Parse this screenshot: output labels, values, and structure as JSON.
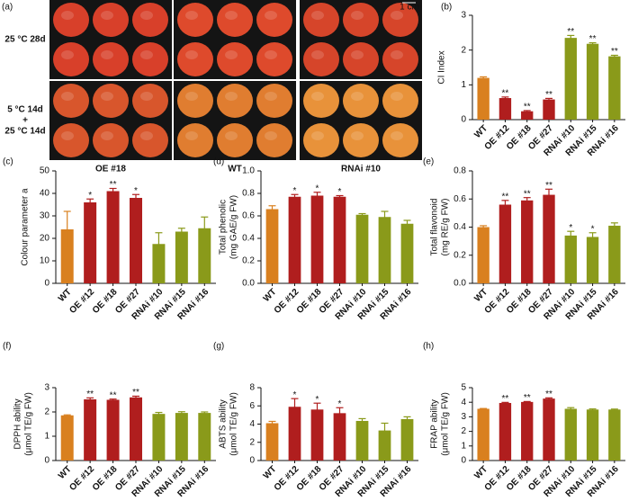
{
  "photo_panel": {
    "panel": "(a)",
    "rows": [
      {
        "label": [
          "25 °C 28d"
        ]
      },
      {
        "label": [
          "5 °C 14d",
          "+",
          "25 °C 14d"
        ]
      }
    ],
    "columns": [
      "OE #18",
      "WT",
      "RNAi #10"
    ],
    "scale_bar": "1 cm"
  },
  "chart_data": [
    {
      "type": "bar",
      "panel": "(b)",
      "ylabel": [
        "CI Index"
      ],
      "categories": [
        "WT",
        "OE #12",
        "OE #18",
        "OE #27",
        "RNAi #10",
        "RNAi #15",
        "RNAi #16"
      ],
      "values": [
        1.2,
        0.62,
        0.24,
        0.58,
        2.35,
        2.18,
        1.82
      ],
      "errors": [
        0.03,
        0.03,
        0.02,
        0.03,
        0.07,
        0.03,
        0.03
      ],
      "significance": [
        null,
        "**",
        "**",
        "**",
        "**",
        "**",
        "**"
      ],
      "colors": [
        "#d9801f",
        "#b01e1e",
        "#b01e1e",
        "#b01e1e",
        "#8a9a1a",
        "#8a9a1a",
        "#8a9a1a"
      ],
      "ylim": [
        0,
        3
      ],
      "yticks": [
        0,
        1,
        2,
        3
      ]
    },
    {
      "type": "bar",
      "panel": "(c)",
      "ylabel": [
        "Colour parameter a"
      ],
      "categories": [
        "WT",
        "OE #12",
        "OE #18",
        "OE #27",
        "RNAi #10",
        "RNAi #15",
        "RNAi #16"
      ],
      "values": [
        24,
        36,
        41,
        38,
        17.5,
        23,
        24.5
      ],
      "errors": [
        8,
        1.5,
        1.2,
        1.5,
        5,
        1.5,
        5
      ],
      "significance": [
        null,
        "*",
        "**",
        "*",
        null,
        null,
        null
      ],
      "colors": [
        "#d9801f",
        "#b01e1e",
        "#b01e1e",
        "#b01e1e",
        "#8a9a1a",
        "#8a9a1a",
        "#8a9a1a"
      ],
      "ylim": [
        0,
        50
      ],
      "yticks": [
        0,
        10,
        20,
        30,
        40,
        50
      ]
    },
    {
      "type": "bar",
      "panel": "(d)",
      "ylabel": [
        "Total phenolic",
        "(mg GAE/g FW)"
      ],
      "categories": [
        "WT",
        "OE #12",
        "OE #18",
        "OE #27",
        "RNAi #10",
        "RNAi #15",
        "RNAi #16"
      ],
      "values": [
        0.66,
        0.77,
        0.78,
        0.77,
        0.61,
        0.59,
        0.53
      ],
      "errors": [
        0.03,
        0.02,
        0.03,
        0.01,
        0.01,
        0.05,
        0.03
      ],
      "significance": [
        null,
        "*",
        "*",
        "*",
        null,
        null,
        null
      ],
      "colors": [
        "#d9801f",
        "#b01e1e",
        "#b01e1e",
        "#b01e1e",
        "#8a9a1a",
        "#8a9a1a",
        "#8a9a1a"
      ],
      "ylim": [
        0,
        1
      ],
      "yticks": [
        {
          "value": 0,
          "label": "0.0"
        },
        0.2,
        0.4,
        0.6,
        0.8,
        {
          "value": 1,
          "label": "1.0"
        }
      ]
    },
    {
      "type": "bar",
      "panel": "(e)",
      "ylabel": [
        "Total flavonoid",
        "(mg RE/g FW)"
      ],
      "categories": [
        "WT",
        "OE #12",
        "OE #18",
        "OE #27",
        "RNAi #10",
        "RNAi #15",
        "RNAi #16"
      ],
      "values": [
        0.4,
        0.56,
        0.59,
        0.63,
        0.34,
        0.33,
        0.41
      ],
      "errors": [
        0.01,
        0.03,
        0.02,
        0.04,
        0.03,
        0.03,
        0.02
      ],
      "significance": [
        null,
        "**",
        "**",
        "**",
        "*",
        "*",
        null
      ],
      "colors": [
        "#d9801f",
        "#b01e1e",
        "#b01e1e",
        "#b01e1e",
        "#8a9a1a",
        "#8a9a1a",
        "#8a9a1a"
      ],
      "ylim": [
        0,
        0.8
      ],
      "yticks": [
        {
          "value": 0,
          "label": "0.0"
        },
        0.2,
        0.4,
        0.6,
        0.8
      ]
    },
    {
      "type": "bar",
      "panel": "(f)",
      "ylabel": [
        "DPPH ability",
        "(μmol TE/g FW)"
      ],
      "categories": [
        "WT",
        "OE #12",
        "OE #18",
        "OE #27",
        "RNAi #10",
        "RNAi #15",
        "RNAi #16"
      ],
      "values": [
        1.86,
        2.52,
        2.5,
        2.6,
        1.92,
        1.96,
        1.96
      ],
      "errors": [
        0.02,
        0.06,
        0.03,
        0.05,
        0.06,
        0.05,
        0.04
      ],
      "significance": [
        null,
        "**",
        "**",
        "**",
        null,
        null,
        null
      ],
      "colors": [
        "#d9801f",
        "#b01e1e",
        "#b01e1e",
        "#b01e1e",
        "#8a9a1a",
        "#8a9a1a",
        "#8a9a1a"
      ],
      "ylim": [
        0,
        3
      ],
      "yticks": [
        0,
        1,
        2,
        3
      ]
    },
    {
      "type": "bar",
      "panel": "(g)",
      "ylabel": [
        "ABTS ability",
        "(μmol TE/g FW)"
      ],
      "categories": [
        "WT",
        "OE #12",
        "OE #18",
        "OE #27",
        "RNAi #10",
        "RNAi #15",
        "RNAi #16"
      ],
      "values": [
        4.1,
        5.9,
        5.6,
        5.2,
        4.35,
        3.3,
        4.55
      ],
      "errors": [
        0.2,
        0.9,
        0.7,
        0.6,
        0.25,
        0.8,
        0.25
      ],
      "significance": [
        null,
        "*",
        "*",
        "*",
        null,
        null,
        null
      ],
      "colors": [
        "#d9801f",
        "#b01e1e",
        "#b01e1e",
        "#b01e1e",
        "#8a9a1a",
        "#8a9a1a",
        "#8a9a1a"
      ],
      "ylim": [
        0,
        8
      ],
      "yticks": [
        0,
        2,
        4,
        6,
        8
      ]
    },
    {
      "type": "bar",
      "panel": "(h)",
      "ylabel": [
        "FRAP ability",
        "(μmol TE/g FW)"
      ],
      "categories": [
        "WT",
        "OE #12",
        "OE #18",
        "OE #27",
        "RNAi #10",
        "RNAi #15",
        "RNAi #16"
      ],
      "values": [
        3.55,
        3.95,
        4.02,
        4.25,
        3.55,
        3.5,
        3.5
      ],
      "errors": [
        0.02,
        0.04,
        0.03,
        0.05,
        0.08,
        0.04,
        0.03
      ],
      "significance": [
        null,
        "**",
        "**",
        "**",
        null,
        null,
        null
      ],
      "colors": [
        "#d9801f",
        "#b01e1e",
        "#b01e1e",
        "#b01e1e",
        "#8a9a1a",
        "#8a9a1a",
        "#8a9a1a"
      ],
      "ylim": [
        0,
        5
      ],
      "yticks": [
        0,
        1,
        2,
        3,
        4,
        5
      ]
    }
  ]
}
